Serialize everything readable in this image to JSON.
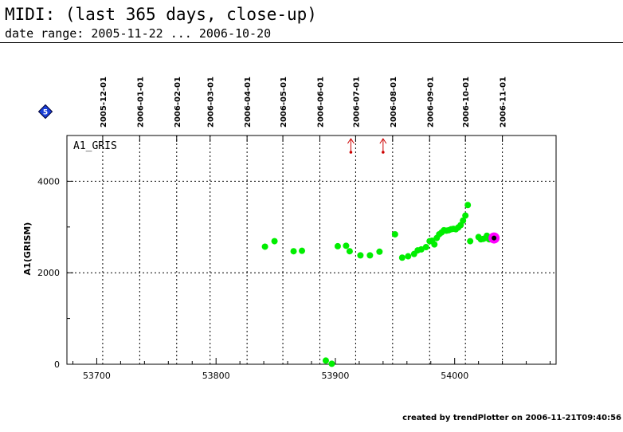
{
  "header": {
    "title": "MIDI: (last 365 days, close-up)",
    "subtitle": "date range: 2005-11-22 ... 2006-10-20"
  },
  "footer": {
    "text": "created by trendPlotter on 2006-11-21T09:40:56"
  },
  "badge": {
    "text": "5",
    "color": "#1a3fd8"
  },
  "chart_data": {
    "type": "scatter",
    "panel_label": "A1_GRIS",
    "title": "",
    "xlabel": "",
    "ylabel": "A1(GRISM)",
    "xlim": [
      53675,
      54085
    ],
    "ylim": [
      0,
      5000
    ],
    "grid": true,
    "x_ticks": [
      53700,
      53800,
      53900,
      54000
    ],
    "y_ticks": [
      0,
      2000,
      4000
    ],
    "y_tick_labels": [
      "0",
      "2000",
      "4000"
    ],
    "date_ticks": [
      {
        "label": "2005-12-01",
        "x": 53705
      },
      {
        "label": "2006-01-01",
        "x": 53736
      },
      {
        "label": "2006-02-01",
        "x": 53767
      },
      {
        "label": "2006-03-01",
        "x": 53795
      },
      {
        "label": "2006-04-01",
        "x": 53826
      },
      {
        "label": "2006-05-01",
        "x": 53856
      },
      {
        "label": "2006-06-01",
        "x": 53887
      },
      {
        "label": "2006-07-01",
        "x": 53917
      },
      {
        "label": "2006-08-01",
        "x": 53948
      },
      {
        "label": "2006-09-01",
        "x": 53979
      },
      {
        "label": "2006-10-01",
        "x": 54009
      },
      {
        "label": "2006-11-01",
        "x": 54040
      }
    ],
    "series": [
      {
        "color": "#00ee00",
        "points": [
          [
            53841,
            2570
          ],
          [
            53849,
            2690
          ],
          [
            53865,
            2470
          ],
          [
            53872,
            2480
          ],
          [
            53892,
            80
          ],
          [
            53897,
            10
          ],
          [
            53902,
            2580
          ],
          [
            53909,
            2590
          ],
          [
            53912,
            2470
          ],
          [
            53921,
            2380
          ],
          [
            53929,
            2380
          ],
          [
            53937,
            2460
          ],
          [
            53950,
            2840
          ],
          [
            53956,
            2330
          ],
          [
            53961,
            2360
          ],
          [
            53966,
            2410
          ],
          [
            53969,
            2490
          ],
          [
            53972,
            2510
          ],
          [
            53976,
            2560
          ],
          [
            53979,
            2690
          ],
          [
            53981,
            2700
          ],
          [
            53983,
            2620
          ],
          [
            53985,
            2760
          ],
          [
            53987,
            2840
          ],
          [
            53989,
            2880
          ],
          [
            53991,
            2930
          ],
          [
            53993,
            2920
          ],
          [
            53995,
            2930
          ],
          [
            53997,
            2950
          ],
          [
            53999,
            2960
          ],
          [
            54001,
            2950
          ],
          [
            54003,
            2990
          ],
          [
            54005,
            3040
          ],
          [
            54007,
            3140
          ],
          [
            54009,
            3250
          ],
          [
            54011,
            3480
          ],
          [
            54013,
            2690
          ],
          [
            54020,
            2780
          ],
          [
            54022,
            2730
          ],
          [
            54024,
            2740
          ],
          [
            54026,
            2760
          ],
          [
            54027,
            2810
          ],
          [
            54029,
            2730
          ],
          [
            54031,
            2760
          ]
        ]
      }
    ],
    "last_point": {
      "x": 54033,
      "y": 2760,
      "color": "#ff00ff"
    },
    "out_of_range_markers": {
      "x": [
        53913,
        53940
      ],
      "color": "#cc0000"
    }
  }
}
